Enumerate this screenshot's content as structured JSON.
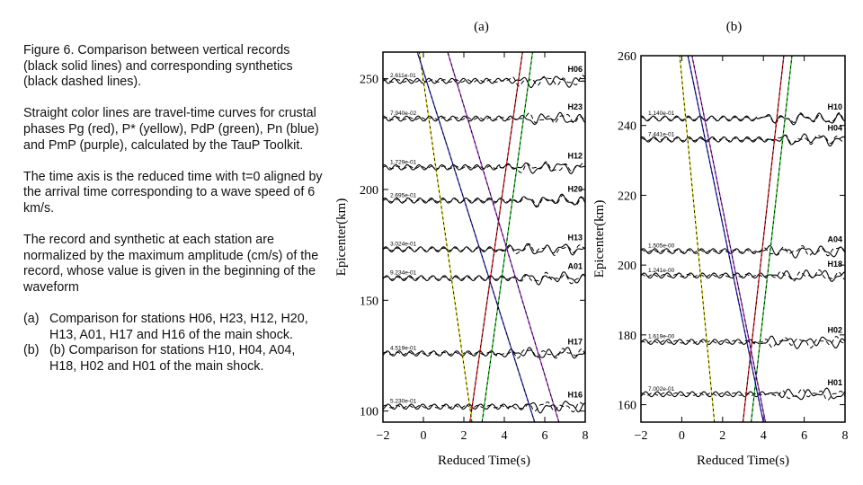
{
  "caption": {
    "title": "Figure 6. Comparison between vertical records (black solid lines) and corresponding synthetics (black dashed lines).",
    "para2": "Straight color lines are travel-time curves for crustal phases Pg (red), P* (yellow), PdP (green), Pn (blue) and PmP (purple), calculated by the TauP Toolkit.",
    "para3": "The time axis is the reduced time with t=0 aligned by the arrival time corresponding to a wave speed of 6 km/s.",
    "para4": "The record and synthetic at each station are normalized by the maximum amplitude (cm/s) of the record, whose value is given in the beginning of the waveform",
    "items": [
      {
        "marker": "(a)",
        "text": "Comparison for stations H06, H23, H12, H20, H13, A01, H17 and H16 of the main shock."
      },
      {
        "marker": "(b)",
        "text": "(b) Comparison for stations H10, H04, A04, H18, H02 and H01 of the main shock."
      }
    ]
  },
  "colors": {
    "Pg": "#e8141e",
    "P*": "#f0e81e",
    "PdP": "#1ec81e",
    "Pn": "#2828c8",
    "PmP": "#a028c8"
  },
  "chart_data": [
    {
      "type": "line",
      "panel_label": "(a)",
      "xlabel": "Reduced Time(s)",
      "ylabel": "Epicenter(km)",
      "xlim": [
        -2,
        8
      ],
      "ylim": [
        95,
        262
      ],
      "xticks": [
        -2,
        0,
        2,
        4,
        6,
        8
      ],
      "yticks": [
        100,
        150,
        200,
        250
      ],
      "traces": [
        {
          "station": "H06",
          "distance": 249,
          "amplitude": "2.611e-01"
        },
        {
          "station": "H23",
          "distance": 232,
          "amplitude": "7.940e-02"
        },
        {
          "station": "H12",
          "distance": 210,
          "amplitude": "1.729e-01"
        },
        {
          "station": "H20",
          "distance": 195,
          "amplitude": "2.695e-01"
        },
        {
          "station": "H13",
          "distance": 173,
          "amplitude": "3.024e-01"
        },
        {
          "station": "A01",
          "distance": 160,
          "amplitude": "9.234e-01"
        },
        {
          "station": "H17",
          "distance": 126,
          "amplitude": "4.519e-01"
        },
        {
          "station": "H16",
          "distance": 102,
          "amplitude": "5.230e-01"
        }
      ],
      "travel_time_curves": [
        {
          "phase": "Pg",
          "points": [
            [
              2.3,
              95
            ],
            [
              4.9,
              262
            ]
          ]
        },
        {
          "phase": "P*",
          "points": [
            [
              2.4,
              95
            ],
            [
              -0.2,
              262
            ]
          ]
        },
        {
          "phase": "PdP",
          "points": [
            [
              2.9,
              95
            ],
            [
              5.4,
              262
            ]
          ]
        },
        {
          "phase": "Pn",
          "points": [
            [
              5.5,
              95
            ],
            [
              -0.3,
              262
            ]
          ]
        },
        {
          "phase": "PmP",
          "points": [
            [
              6.7,
              95
            ],
            [
              1.2,
              262
            ]
          ]
        }
      ]
    },
    {
      "type": "line",
      "panel_label": "(b)",
      "xlabel": "Reduced Time(s)",
      "ylabel": "Epicenter(km)",
      "xlim": [
        -2,
        8
      ],
      "ylim": [
        155,
        260
      ],
      "xticks": [
        -2,
        0,
        2,
        4,
        6,
        8
      ],
      "yticks": [
        160,
        180,
        200,
        220,
        240,
        260
      ],
      "traces": [
        {
          "station": "H10",
          "distance": 242,
          "amplitude": "1.140e-01"
        },
        {
          "station": "H04",
          "distance": 236,
          "amplitude": "7.441e-01"
        },
        {
          "station": "A04",
          "distance": 204,
          "amplitude": "1.505e-00"
        },
        {
          "station": "H18",
          "distance": 197,
          "amplitude": "1.241e-00"
        },
        {
          "station": "H02",
          "distance": 178,
          "amplitude": "1.619e-00"
        },
        {
          "station": "H01",
          "distance": 163,
          "amplitude": "7.002e-01"
        }
      ],
      "travel_time_curves": [
        {
          "phase": "Pg",
          "points": [
            [
              3.0,
              155
            ],
            [
              5.0,
              260
            ]
          ]
        },
        {
          "phase": "P*",
          "points": [
            [
              1.6,
              155
            ],
            [
              -0.1,
              260
            ]
          ]
        },
        {
          "phase": "PdP",
          "points": [
            [
              3.4,
              155
            ],
            [
              5.4,
              260
            ]
          ]
        },
        {
          "phase": "Pn",
          "points": [
            [
              4.0,
              155
            ],
            [
              0.3,
              260
            ]
          ]
        },
        {
          "phase": "PmP",
          "points": [
            [
              4.1,
              155
            ],
            [
              0.5,
              260
            ]
          ]
        }
      ]
    }
  ]
}
